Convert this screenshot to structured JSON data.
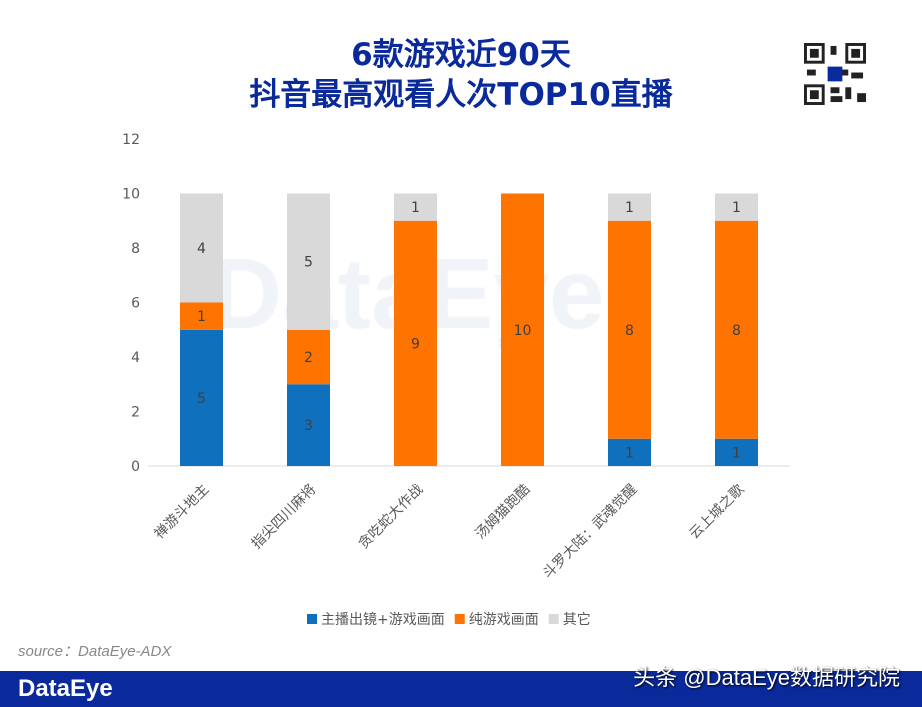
{
  "chart_data": {
    "type": "bar",
    "stacked": true,
    "title": "6款游戏近90天\n抖音最高观看人次TOP10直播",
    "title_lines": [
      "6款游戏近90天",
      "抖音最高观看人次TOP10直播"
    ],
    "categories": [
      "禅游斗地主",
      "指尖四川麻将",
      "贪吃蛇大作战",
      "汤姆猫跑酷",
      "斗罗大陆：武魂觉醒",
      "云上城之歌"
    ],
    "series": [
      {
        "name": "主播出镜+游戏画面",
        "color": "#0f70bd",
        "values": [
          5,
          3,
          0,
          0,
          1,
          1
        ]
      },
      {
        "name": "纯游戏画面",
        "color": "#ff7300",
        "values": [
          1,
          2,
          9,
          10,
          8,
          8
        ]
      },
      {
        "name": "其它",
        "color": "#d9d9d9",
        "values": [
          4,
          5,
          1,
          0,
          1,
          1
        ]
      }
    ],
    "ylim": [
      0,
      12
    ],
    "yticks": [
      0,
      2,
      4,
      6,
      8,
      10,
      12
    ],
    "grid": false,
    "legend": "bottom",
    "data_labels": true
  },
  "source": "source：DataEye-ADX",
  "footer": {
    "logo": "DataEye",
    "watermark": "头条 @DataEye数据研究院"
  },
  "background_watermark": "DataEye",
  "colors": {
    "title": "#0a2a9c",
    "footer": "#0a2a9c"
  },
  "qr_icon": "qr-code-icon"
}
